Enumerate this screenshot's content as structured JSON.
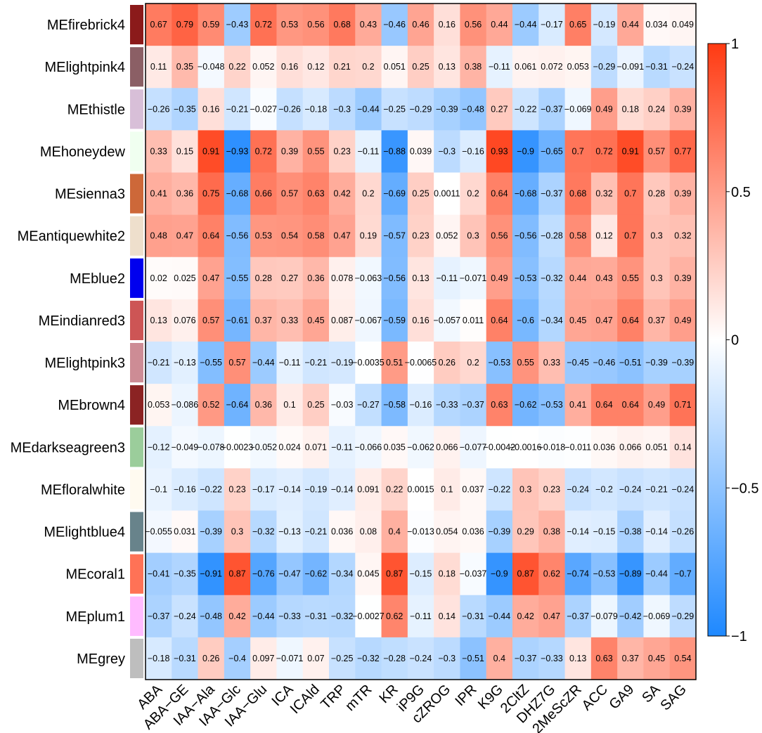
{
  "chart_data": {
    "type": "heatmap",
    "title": "",
    "xlabel": "",
    "ylabel": "",
    "rows": [
      "MEfirebrick4",
      "MElightpink4",
      "MEthistle",
      "MEhoneydew",
      "MEsienna3",
      "MEantiquewhite2",
      "MEblue2",
      "MEindianred3",
      "MElightpink3",
      "MEbrown4",
      "MEdarkseagreen3",
      "MEfloralwhite",
      "MElightblue4",
      "MEcoral1",
      "MEplum1",
      "MEgrey"
    ],
    "row_colors": [
      "#8B1A1A",
      "#8B5F65",
      "#D8BFD8",
      "#F0FFF0",
      "#CD6839",
      "#EEDFCC",
      "#0000EE",
      "#CD5555",
      "#CD8C95",
      "#8B2323",
      "#9BCD9B",
      "#FFFAF0",
      "#68838B",
      "#FF7256",
      "#FFBBFF",
      "#BEBEBE"
    ],
    "columns": [
      "ABA",
      "ABA−GE",
      "IAA−Ala",
      "IAA−Glc",
      "IAA−Glu",
      "ICA",
      "ICAld",
      "TRP",
      "mTR",
      "KR",
      "iP9G",
      "cZROG",
      "IPR",
      "K9G",
      "2CltZ",
      "DHZ7G",
      "2MeScZR",
      "ACC",
      "GA9",
      "SA",
      "SAG"
    ],
    "values": [
      [
        0.67,
        0.79,
        0.59,
        -0.43,
        0.72,
        0.53,
        0.56,
        0.68,
        0.43,
        -0.46,
        0.46,
        0.16,
        0.56,
        0.44,
        -0.44,
        -0.17,
        0.65,
        -0.19,
        0.44,
        0.034,
        0.049
      ],
      [
        0.11,
        0.35,
        -0.048,
        0.22,
        0.052,
        0.16,
        0.12,
        0.21,
        0.2,
        0.051,
        0.25,
        0.13,
        0.38,
        -0.11,
        0.061,
        0.072,
        0.053,
        -0.29,
        -0.091,
        -0.31,
        -0.24
      ],
      [
        -0.26,
        -0.35,
        0.16,
        -0.21,
        -0.027,
        -0.26,
        -0.18,
        -0.3,
        -0.44,
        -0.25,
        -0.29,
        -0.39,
        -0.48,
        0.27,
        -0.22,
        -0.37,
        -0.069,
        0.49,
        0.18,
        0.24,
        0.39
      ],
      [
        0.33,
        0.15,
        0.91,
        -0.93,
        0.72,
        0.39,
        0.55,
        0.23,
        -0.11,
        -0.88,
        0.039,
        -0.3,
        -0.16,
        0.93,
        -0.9,
        -0.65,
        0.7,
        0.72,
        0.91,
        0.57,
        0.77
      ],
      [
        0.41,
        0.36,
        0.75,
        -0.68,
        0.66,
        0.57,
        0.63,
        0.42,
        0.2,
        -0.69,
        0.25,
        0.0011,
        0.2,
        0.64,
        -0.68,
        -0.37,
        0.68,
        0.32,
        0.7,
        0.28,
        0.39
      ],
      [
        0.48,
        0.47,
        0.64,
        -0.56,
        0.53,
        0.54,
        0.58,
        0.47,
        0.19,
        -0.57,
        0.23,
        0.052,
        0.3,
        0.56,
        -0.56,
        -0.28,
        0.58,
        0.12,
        0.7,
        0.3,
        0.32
      ],
      [
        0.02,
        0.025,
        0.47,
        -0.55,
        0.28,
        0.27,
        0.36,
        0.078,
        -0.063,
        -0.56,
        0.13,
        -0.11,
        -0.071,
        0.49,
        -0.53,
        -0.32,
        0.44,
        0.43,
        0.55,
        0.3,
        0.39
      ],
      [
        0.13,
        0.076,
        0.57,
        -0.61,
        0.37,
        0.33,
        0.45,
        0.087,
        -0.067,
        -0.59,
        0.16,
        -0.057,
        0.011,
        0.64,
        -0.6,
        -0.34,
        0.45,
        0.47,
        0.64,
        0.37,
        0.49
      ],
      [
        -0.21,
        -0.13,
        -0.55,
        0.57,
        -0.44,
        -0.11,
        -0.21,
        -0.19,
        -0.0035,
        0.51,
        -0.0065,
        0.26,
        0.2,
        -0.53,
        0.55,
        0.33,
        -0.45,
        -0.46,
        -0.51,
        -0.39,
        -0.39
      ],
      [
        0.053,
        -0.086,
        0.52,
        -0.64,
        0.36,
        0.1,
        0.25,
        -0.03,
        -0.27,
        -0.58,
        -0.16,
        -0.33,
        -0.37,
        0.63,
        -0.62,
        -0.53,
        0.41,
        0.64,
        0.64,
        0.49,
        0.71
      ],
      [
        -0.12,
        -0.049,
        -0.078,
        -0.0023,
        -0.052,
        0.024,
        0.071,
        -0.11,
        -0.066,
        0.035,
        -0.062,
        0.066,
        -0.077,
        -0.0042,
        -0.0016,
        -0.018,
        -0.011,
        0.036,
        0.066,
        0.051,
        0.14
      ],
      [
        -0.1,
        -0.16,
        -0.22,
        0.23,
        -0.17,
        -0.14,
        -0.19,
        -0.14,
        0.091,
        0.22,
        0.0015,
        0.1,
        0.037,
        -0.22,
        0.3,
        0.23,
        -0.24,
        -0.2,
        -0.24,
        -0.21,
        -0.24
      ],
      [
        -0.055,
        0.031,
        -0.39,
        0.3,
        -0.32,
        -0.13,
        -0.21,
        0.036,
        0.08,
        0.4,
        -0.013,
        0.054,
        0.036,
        -0.39,
        0.29,
        0.38,
        -0.14,
        -0.15,
        -0.38,
        -0.14,
        -0.26
      ],
      [
        -0.41,
        -0.35,
        -0.91,
        0.87,
        -0.76,
        -0.47,
        -0.62,
        -0.34,
        0.045,
        0.87,
        -0.15,
        0.18,
        -0.037,
        -0.9,
        0.87,
        0.62,
        -0.74,
        -0.53,
        -0.89,
        -0.44,
        -0.7
      ],
      [
        -0.37,
        -0.24,
        -0.48,
        0.42,
        -0.44,
        -0.33,
        -0.31,
        -0.32,
        -0.0027,
        0.62,
        -0.11,
        0.14,
        -0.31,
        -0.44,
        0.42,
        0.47,
        -0.37,
        -0.079,
        -0.42,
        -0.069,
        -0.29
      ],
      [
        -0.18,
        -0.31,
        0.26,
        -0.4,
        0.097,
        -0.071,
        0.07,
        -0.25,
        -0.32,
        -0.28,
        -0.24,
        -0.3,
        -0.51,
        0.4,
        -0.37,
        -0.33,
        0.13,
        0.63,
        0.37,
        0.45,
        0.54
      ]
    ],
    "value_labels": [
      [
        "0.67",
        "0.79",
        "0.59",
        "−0.43",
        "0.72",
        "0.53",
        "0.56",
        "0.68",
        "0.43",
        "−0.46",
        "0.46",
        "0.16",
        "0.56",
        "0.44",
        "−0.44",
        "−0.17",
        "0.65",
        "−0.19",
        "0.44",
        "0.034",
        "0.049"
      ],
      [
        "0.11",
        "0.35",
        "−0.048",
        "0.22",
        "0.052",
        "0.16",
        "0.12",
        "0.21",
        "0.2",
        "0.051",
        "0.25",
        "0.13",
        "0.38",
        "−0.11",
        "0.061",
        "0.072",
        "0.053",
        "−0.29",
        "−0.091",
        "−0.31",
        "−0.24"
      ],
      [
        "−0.26",
        "−0.35",
        "0.16",
        "−0.21",
        "−0.027",
        "−0.26",
        "−0.18",
        "−0.3",
        "−0.44",
        "−0.25",
        "−0.29",
        "−0.39",
        "−0.48",
        "0.27",
        "−0.22",
        "−0.37",
        "−0.069",
        "0.49",
        "0.18",
        "0.24",
        "0.39"
      ],
      [
        "0.33",
        "0.15",
        "0.91",
        "−0.93",
        "0.72",
        "0.39",
        "0.55",
        "0.23",
        "−0.11",
        "−0.88",
        "0.039",
        "−0.3",
        "−0.16",
        "0.93",
        "−0.9",
        "−0.65",
        "0.7",
        "0.72",
        "0.91",
        "0.57",
        "0.77"
      ],
      [
        "0.41",
        "0.36",
        "0.75",
        "−0.68",
        "0.66",
        "0.57",
        "0.63",
        "0.42",
        "0.2",
        "−0.69",
        "0.25",
        "0.0011",
        "0.2",
        "0.64",
        "−0.68",
        "−0.37",
        "0.68",
        "0.32",
        "0.7",
        "0.28",
        "0.39"
      ],
      [
        "0.48",
        "0.47",
        "0.64",
        "−0.56",
        "0.53",
        "0.54",
        "0.58",
        "0.47",
        "0.19",
        "−0.57",
        "0.23",
        "0.052",
        "0.3",
        "0.56",
        "−0.56",
        "−0.28",
        "0.58",
        "0.12",
        "0.7",
        "0.3",
        "0.32"
      ],
      [
        "0.02",
        "0.025",
        "0.47",
        "−0.55",
        "0.28",
        "0.27",
        "0.36",
        "0.078",
        "−0.063",
        "−0.56",
        "0.13",
        "−0.11",
        "−0.071",
        "0.49",
        "−0.53",
        "−0.32",
        "0.44",
        "0.43",
        "0.55",
        "0.3",
        "0.39"
      ],
      [
        "0.13",
        "0.076",
        "0.57",
        "−0.61",
        "0.37",
        "0.33",
        "0.45",
        "0.087",
        "−0.067",
        "−0.59",
        "0.16",
        "−0.057",
        "0.011",
        "0.64",
        "−0.6",
        "−0.34",
        "0.45",
        "0.47",
        "0.64",
        "0.37",
        "0.49"
      ],
      [
        "−0.21",
        "−0.13",
        "−0.55",
        "0.57",
        "−0.44",
        "−0.11",
        "−0.21",
        "−0.19",
        "−0.0035",
        "0.51",
        "−0.0065",
        "0.26",
        "0.2",
        "−0.53",
        "0.55",
        "0.33",
        "−0.45",
        "−0.46",
        "−0.51",
        "−0.39",
        "−0.39"
      ],
      [
        "0.053",
        "−0.086",
        "0.52",
        "−0.64",
        "0.36",
        "0.1",
        "0.25",
        "−0.03",
        "−0.27",
        "−0.58",
        "−0.16",
        "−0.33",
        "−0.37",
        "0.63",
        "−0.62",
        "−0.53",
        "0.41",
        "0.64",
        "0.64",
        "0.49",
        "0.71"
      ],
      [
        "−0.12",
        "−0.049",
        "−0.078",
        "−0.0023",
        "−0.052",
        "0.024",
        "0.071",
        "−0.11",
        "−0.066",
        "0.035",
        "−0.062",
        "0.066",
        "−0.077",
        "−0.0042",
        "−0.0016",
        "−0.018",
        "−0.011",
        "0.036",
        "0.066",
        "0.051",
        "0.14"
      ],
      [
        "−0.1",
        "−0.16",
        "−0.22",
        "0.23",
        "−0.17",
        "−0.14",
        "−0.19",
        "−0.14",
        "0.091",
        "0.22",
        "0.0015",
        "0.1",
        "0.037",
        "−0.22",
        "0.3",
        "0.23",
        "−0.24",
        "−0.2",
        "−0.24",
        "−0.21",
        "−0.24"
      ],
      [
        "−0.055",
        "0.031",
        "−0.39",
        "0.3",
        "−0.32",
        "−0.13",
        "−0.21",
        "0.036",
        "0.08",
        "0.4",
        "−0.013",
        "0.054",
        "0.036",
        "−0.39",
        "0.29",
        "0.38",
        "−0.14",
        "−0.15",
        "−0.38",
        "−0.14",
        "−0.26"
      ],
      [
        "−0.41",
        "−0.35",
        "−0.91",
        "0.87",
        "−0.76",
        "−0.47",
        "−0.62",
        "−0.34",
        "0.045",
        "0.87",
        "−0.15",
        "0.18",
        "−0.037",
        "−0.9",
        "0.87",
        "0.62",
        "−0.74",
        "−0.53",
        "−0.89",
        "−0.44",
        "−0.7"
      ],
      [
        "−0.37",
        "−0.24",
        "−0.48",
        "0.42",
        "−0.44",
        "−0.33",
        "−0.31",
        "−0.32",
        "−0.0027",
        "0.62",
        "−0.11",
        "0.14",
        "−0.31",
        "−0.44",
        "0.42",
        "0.47",
        "−0.37",
        "−0.079",
        "−0.42",
        "−0.069",
        "−0.29"
      ],
      [
        "−0.18",
        "−0.31",
        "0.26",
        "−0.4",
        "0.097",
        "−0.071",
        "0.07",
        "−0.25",
        "−0.32",
        "−0.28",
        "−0.24",
        "−0.3",
        "−0.51",
        "0.4",
        "−0.37",
        "−0.33",
        "0.13",
        "0.63",
        "0.37",
        "0.45",
        "0.54"
      ]
    ],
    "color_scale": {
      "range": [
        -1,
        1
      ],
      "low_color": "#1E88FF",
      "mid_color": "#FFFFFF",
      "high_color": "#FF3A12",
      "ticks": [
        1,
        0.5,
        0,
        -0.5,
        -1
      ],
      "tick_labels": [
        "1",
        "0.5",
        "0",
        "−0.5",
        "−1"
      ]
    }
  }
}
